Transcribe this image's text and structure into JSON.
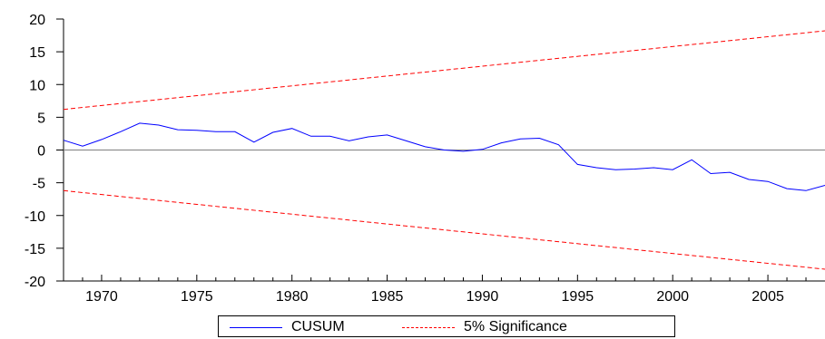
{
  "chart_data": {
    "type": "line",
    "title": "",
    "xlabel": "",
    "ylabel": "",
    "xlim": [
      1968,
      2008
    ],
    "ylim": [
      -20,
      20
    ],
    "x_ticks": [
      1970,
      1975,
      1980,
      1985,
      1990,
      1995,
      2000,
      2005
    ],
    "y_ticks": [
      20,
      15,
      10,
      5,
      0,
      -5,
      -10,
      -15,
      -20
    ],
    "zero_line": true,
    "grid": false,
    "legend_position": "bottom-center",
    "series": [
      {
        "name": "CUSUM",
        "color": "#0000ff",
        "style": "solid",
        "x": [
          1968,
          1969,
          1970,
          1971,
          1972,
          1973,
          1974,
          1975,
          1976,
          1977,
          1978,
          1979,
          1980,
          1981,
          1982,
          1983,
          1984,
          1985,
          1986,
          1987,
          1988,
          1989,
          1990,
          1991,
          1992,
          1993,
          1994,
          1995,
          1996,
          1997,
          1998,
          1999,
          2000,
          2001,
          2002,
          2003,
          2004,
          2005,
          2006,
          2007,
          2008
        ],
        "values": [
          1.5,
          0.6,
          1.6,
          2.8,
          4.1,
          3.8,
          3.1,
          3.0,
          2.8,
          2.8,
          1.2,
          2.7,
          3.3,
          2.1,
          2.1,
          1.4,
          2.0,
          2.3,
          1.4,
          0.5,
          0.0,
          -0.2,
          0.1,
          1.1,
          1.7,
          1.8,
          0.8,
          -2.2,
          -2.7,
          -3.0,
          -2.9,
          -2.7,
          -3.0,
          -1.5,
          -3.6,
          -3.4,
          -4.5,
          -4.8,
          -5.9,
          -6.2,
          -5.4
        ]
      },
      {
        "name": "5% Significance",
        "color": "#ff0000",
        "style": "dashed",
        "x": [
          1968,
          2008
        ],
        "upper": [
          6.2,
          18.2
        ],
        "lower": [
          -6.2,
          -18.2
        ]
      }
    ]
  }
}
